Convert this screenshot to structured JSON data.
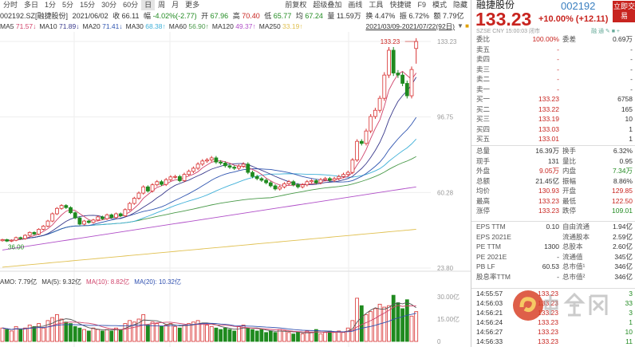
{
  "toolbar": {
    "periods": [
      "分时",
      "多日",
      "1分",
      "5分",
      "15分",
      "30分",
      "60分",
      "日",
      "周",
      "月",
      "更多"
    ],
    "selected": "日",
    "right": [
      "前复权",
      "超级叠加",
      "画线",
      "工具",
      "快捷键",
      "F9",
      "模式",
      "隐藏"
    ]
  },
  "info": {
    "code": "002192.SZ[融捷股份]",
    "date": "2021/06/02",
    "close_label": "收",
    "close": "66.11",
    "chg_label": "幅",
    "chg": "-4.02%(-2.77)",
    "open_label": "开",
    "open": "67.96",
    "high_label": "高",
    "high": "70.40",
    "low_label": "低",
    "low": "65.77",
    "avg_label": "均",
    "avg": "67.24",
    "vol_label": "量",
    "vol": "11.59万",
    "turn_label": "换",
    "turn": "4.47%",
    "amp_label": "振",
    "amp": "6.72%",
    "amt_label": "额",
    "amt": "7.79亿"
  },
  "ma": [
    {
      "label": "MA5",
      "value": "71.57↓",
      "color": "#d0436b"
    },
    {
      "label": "MA10",
      "value": "71.89↓",
      "color": "#3a3a8c"
    },
    {
      "label": "MA20",
      "value": "71.41↓",
      "color": "#2f55b0"
    },
    {
      "label": "MA30",
      "value": "68.38↑",
      "color": "#3fb0d8"
    },
    {
      "label": "MA60",
      "value": "56.90↑",
      "color": "#4a9a4a"
    },
    {
      "label": "MA120",
      "value": "49.37↑",
      "color": "#b04fc8"
    },
    {
      "label": "MA250",
      "value": "33.19↑",
      "color": "#e0c050"
    }
  ],
  "range": "2021/03/09-2021/07/22(92日)",
  "axis": {
    "price_ticks": [
      133.23,
      96.75,
      60.28,
      23.8
    ],
    "vol_ticks": [
      "30.00亿",
      "15.00亿",
      "0"
    ],
    "max_label": "133.23",
    "min_label": "36.00"
  },
  "colors": {
    "up": "#d83030",
    "down": "#1f8a1f",
    "vma5": "#555555",
    "vma10": "#d0436b",
    "vma20": "#3050b0"
  },
  "candles": {
    "closes": [
      37.5,
      36.8,
      37.2,
      38.5,
      38,
      39.6,
      41,
      40.2,
      42.5,
      44,
      46.5,
      50,
      52.6,
      54,
      53,
      50.5,
      48,
      45,
      46.5,
      45.8,
      47,
      48.5,
      47.6,
      49.5,
      48.2,
      50,
      49,
      52,
      55,
      57.5,
      60,
      63,
      61,
      64,
      65.5,
      64.2,
      66.5,
      67.8,
      68,
      66,
      69,
      70.5,
      72,
      74,
      75.5,
      76,
      77,
      75,
      74.5,
      73.2,
      72.5,
      72,
      73,
      74,
      70,
      68,
      67,
      66.2,
      65,
      63.5,
      62,
      63,
      64.5,
      65.5,
      64,
      63,
      64,
      65.5,
      66,
      65,
      66.5,
      67,
      66.2,
      67,
      68,
      69,
      70,
      76,
      85,
      84,
      90,
      97,
      100,
      105.8,
      117,
      129,
      118,
      117,
      113,
      107,
      119.7,
      133.23
    ],
    "last_open": 129.85,
    "last_low": 122.5,
    "ma120_range": [
      32.5,
      63
    ],
    "ma250_range": [
      24.2,
      42.5
    ]
  },
  "volume_yi": [
    9,
    8,
    7,
    10,
    8,
    9,
    11,
    10,
    12,
    9,
    14,
    16,
    18,
    15,
    13,
    12,
    10,
    9,
    8,
    7,
    9,
    8,
    7,
    8,
    7,
    9,
    8,
    12,
    14,
    13,
    15,
    18,
    11,
    13,
    12,
    10,
    11,
    12,
    10,
    9,
    11,
    12,
    13,
    14,
    12,
    11,
    10,
    9,
    8,
    9,
    8,
    7,
    10,
    11,
    9,
    8,
    7,
    8,
    6,
    7,
    6,
    8,
    7,
    6,
    5,
    6,
    5,
    7,
    6,
    8,
    5,
    6,
    7,
    6,
    7,
    6,
    9,
    14,
    29,
    24,
    18,
    20,
    22,
    25,
    23,
    24,
    31,
    26,
    22,
    28,
    17,
    20
  ],
  "vol_legend": {
    "amo": "AMO: 7.79亿",
    "ma5": "MA(5): 9.32亿",
    "ma10": "MA(10): 8.82亿",
    "ma20": "MA(20): 10.32亿"
  },
  "quote": {
    "name": "融捷股份",
    "code": "002192",
    "trade": "立即交易",
    "price": "133.23",
    "change": "+10.00% (+12.11)",
    "meta": "SZSE  CNY  15:00:03  闭市",
    "icons": "融 通 ✎ ■ +",
    "book": [
      {
        "l": "委比",
        "v": "100.00%",
        "l2": "委差",
        "v2": "0.69万"
      },
      {
        "l": "卖五",
        "v": "-",
        "v2": "-"
      },
      {
        "l": "卖四",
        "v": "-",
        "v2": "-"
      },
      {
        "l": "卖三",
        "v": "-",
        "v2": "-"
      },
      {
        "l": "卖二",
        "v": "-",
        "v2": "-"
      },
      {
        "l": "卖一",
        "v": "-",
        "v2": "-"
      },
      {
        "l": "买一",
        "v": "133.23",
        "v2": "6758"
      },
      {
        "l": "买二",
        "v": "133.22",
        "v2": "165"
      },
      {
        "l": "买三",
        "v": "133.19",
        "v2": "10"
      },
      {
        "l": "买四",
        "v": "133.03",
        "v2": "1"
      },
      {
        "l": "买五",
        "v": "133.01",
        "v2": "1"
      }
    ],
    "stats": [
      {
        "l": "总量",
        "v": "16.39万",
        "l2": "换手",
        "v2": "6.32%"
      },
      {
        "l": "现手",
        "v": "131",
        "l2": "量比",
        "v2": "0.95"
      },
      {
        "l": "外盘",
        "v": "9.05万",
        "l2": "内盘",
        "v2": "7.34万"
      },
      {
        "l": "总额",
        "v": "21.45亿",
        "l2": "振幅",
        "v2": "8.86%"
      },
      {
        "l": "均价",
        "v": "130.93",
        "l2": "开盘",
        "v2": "129.85"
      },
      {
        "l": "最高",
        "v": "133.23",
        "l2": "最低",
        "v2": "122.50"
      },
      {
        "l": "涨停",
        "v": "133.23",
        "l2": "跌停",
        "v2": "109.01"
      }
    ],
    "fund": [
      {
        "l": "EPS TTM",
        "v": "0.10",
        "l2": "自由流通",
        "v2": "1.94亿"
      },
      {
        "l": "EPS 2021E",
        "v": "",
        "l2": "流通股本",
        "v2": "2.59亿"
      },
      {
        "l": "PE TTM",
        "v": "1300",
        "l2": "总股本",
        "v2": "2.60亿"
      },
      {
        "l": "PE 2021E",
        "v": "-",
        "l2": "流通值",
        "v2": "345亿"
      },
      {
        "l": "PB LF",
        "v": "60.53",
        "l2": "总市值¹",
        "v2": "346亿"
      },
      {
        "l": "股息率TTM",
        "v": "-",
        "l2": "总市值²",
        "v2": "346亿"
      }
    ],
    "ticks": [
      {
        "t": "14:55:57",
        "p": "133.23",
        "q": "3"
      },
      {
        "t": "14:56:03",
        "p": "133.23",
        "q": "33"
      },
      {
        "t": "14:56:21",
        "p": "133.23",
        "q": "3"
      },
      {
        "t": "14:56:24",
        "p": "133.23",
        "q": "1"
      },
      {
        "t": "14:56:27",
        "p": "133.23",
        "q": "10"
      },
      {
        "t": "14:56:33",
        "p": "133.23",
        "q": "11"
      }
    ]
  },
  "watermark": {
    "brand": "中金网",
    "site": "CNGOLD.COM.CN",
    "slogan": "中文财经新媒体"
  }
}
